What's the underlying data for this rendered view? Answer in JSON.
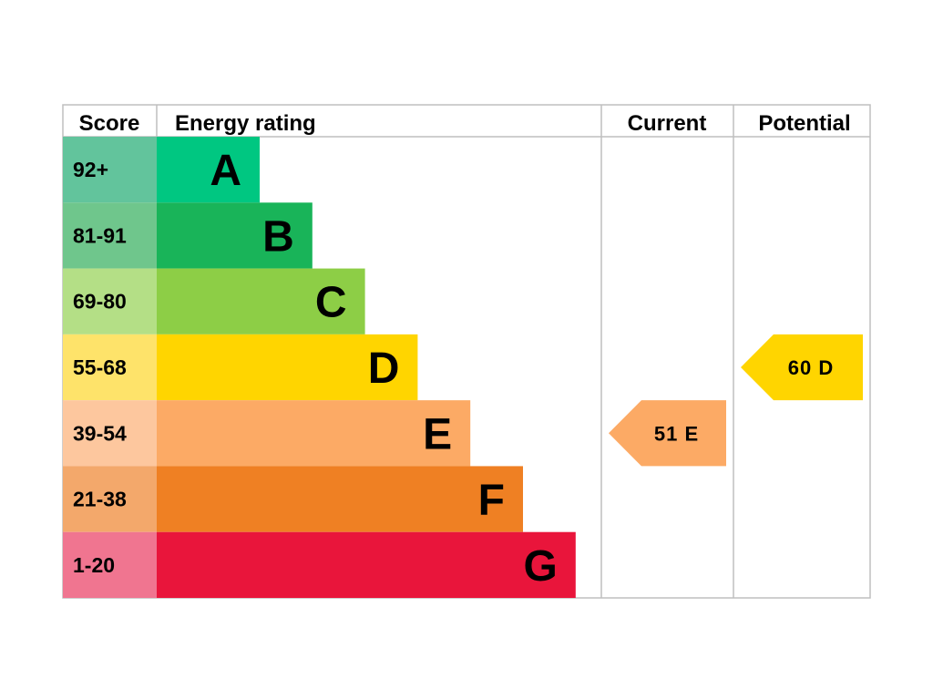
{
  "chart_data": {
    "type": "bar",
    "headers": {
      "score": "Score",
      "rating": "Energy rating",
      "current": "Current",
      "potential": "Potential"
    },
    "bands": [
      {
        "score": "92+",
        "letter": "A",
        "color": "#00c781",
        "score_color": "#62c49c"
      },
      {
        "score": "81-91",
        "letter": "B",
        "color": "#19b459",
        "score_color": "#6fc68c"
      },
      {
        "score": "69-80",
        "letter": "C",
        "color": "#8dce46",
        "score_color": "#b4df86"
      },
      {
        "score": "55-68",
        "letter": "D",
        "color": "#ffd500",
        "score_color": "#fee36a"
      },
      {
        "score": "39-54",
        "letter": "E",
        "color": "#fcaa65",
        "score_color": "#fdc79e"
      },
      {
        "score": "21-38",
        "letter": "F",
        "color": "#ef8023",
        "score_color": "#f3a86b"
      },
      {
        "score": "1-20",
        "letter": "G",
        "color": "#e9153b",
        "score_color": "#f07590"
      }
    ],
    "current": {
      "value": 51,
      "band": "E",
      "color": "#fcaa65"
    },
    "potential": {
      "value": 60,
      "band": "D",
      "color": "#ffd500"
    },
    "border_color": "#bfbfbf"
  }
}
